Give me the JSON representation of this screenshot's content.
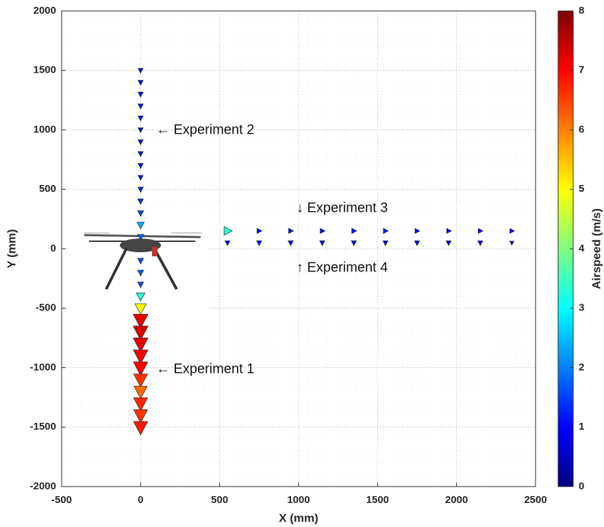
{
  "chart_data": {
    "type": "scatter",
    "xlabel": "X (mm)",
    "ylabel": "Y (mm)",
    "xlim": [
      -500,
      2500
    ],
    "xticks": [
      -500,
      0,
      500,
      1000,
      1500,
      2000,
      2500
    ],
    "ylim": [
      -2000,
      2000
    ],
    "yticks": [
      -2000,
      -1500,
      -1000,
      -500,
      0,
      500,
      1000,
      1500,
      2000
    ],
    "grid": true,
    "colormap": "jet",
    "colorbar": {
      "label": "Airspeed (m/s)",
      "clim": [
        0,
        8
      ],
      "ticks": [
        0,
        1,
        2,
        3,
        4,
        5,
        6,
        7,
        8
      ]
    },
    "annotations": [
      "← Experiment 2",
      "↓ Experiment 3",
      "↑ Experiment 4",
      "← Experiment 1"
    ],
    "series": [
      {
        "marker": "v",
        "x": [
          0,
          0,
          0,
          0,
          0,
          0,
          0,
          0,
          0,
          0,
          0,
          0,
          0,
          0,
          0,
          0,
          0,
          0,
          0,
          0,
          0,
          0,
          0,
          0,
          0,
          0,
          0,
          0,
          0,
          0
        ],
        "y": [
          1500,
          1400,
          1300,
          1200,
          1100,
          1000,
          900,
          800,
          700,
          600,
          500,
          400,
          300,
          200,
          100,
          -100,
          -200,
          -300,
          -400,
          -500,
          -600,
          -700,
          -800,
          -900,
          -1000,
          -1100,
          -1200,
          -1300,
          -1400,
          -1500
        ],
        "c": [
          1.0,
          1.1,
          1.1,
          1.2,
          1.1,
          1.0,
          1.1,
          1.2,
          1.2,
          1.1,
          1.3,
          1.4,
          1.6,
          2.4,
          1.8,
          1.6,
          1.7,
          1.6,
          3.3,
          5.0,
          7.2,
          7.3,
          7.2,
          7.1,
          7.0,
          6.6,
          6.2,
          6.7,
          6.6,
          6.8
        ]
      },
      {
        "marker": ">",
        "x": [
          550,
          750,
          950,
          1150,
          1350,
          1550,
          1750,
          1950,
          2150,
          2350
        ],
        "y": [
          150,
          150,
          150,
          150,
          150,
          150,
          150,
          150,
          150,
          150
        ],
        "c": [
          3.3,
          1.1,
          1.1,
          1.1,
          1.1,
          1.1,
          1.0,
          1.0,
          1.0,
          0.9
        ]
      },
      {
        "marker": "v",
        "x": [
          550,
          750,
          950,
          1150,
          1350,
          1550,
          1750,
          1950,
          2150,
          2350
        ],
        "y": [
          50,
          50,
          50,
          50,
          50,
          50,
          50,
          50,
          50,
          50
        ],
        "c": [
          1.0,
          1.1,
          1.1,
          1.1,
          1.1,
          1.0,
          1.0,
          1.0,
          1.0,
          0.5
        ]
      }
    ]
  }
}
